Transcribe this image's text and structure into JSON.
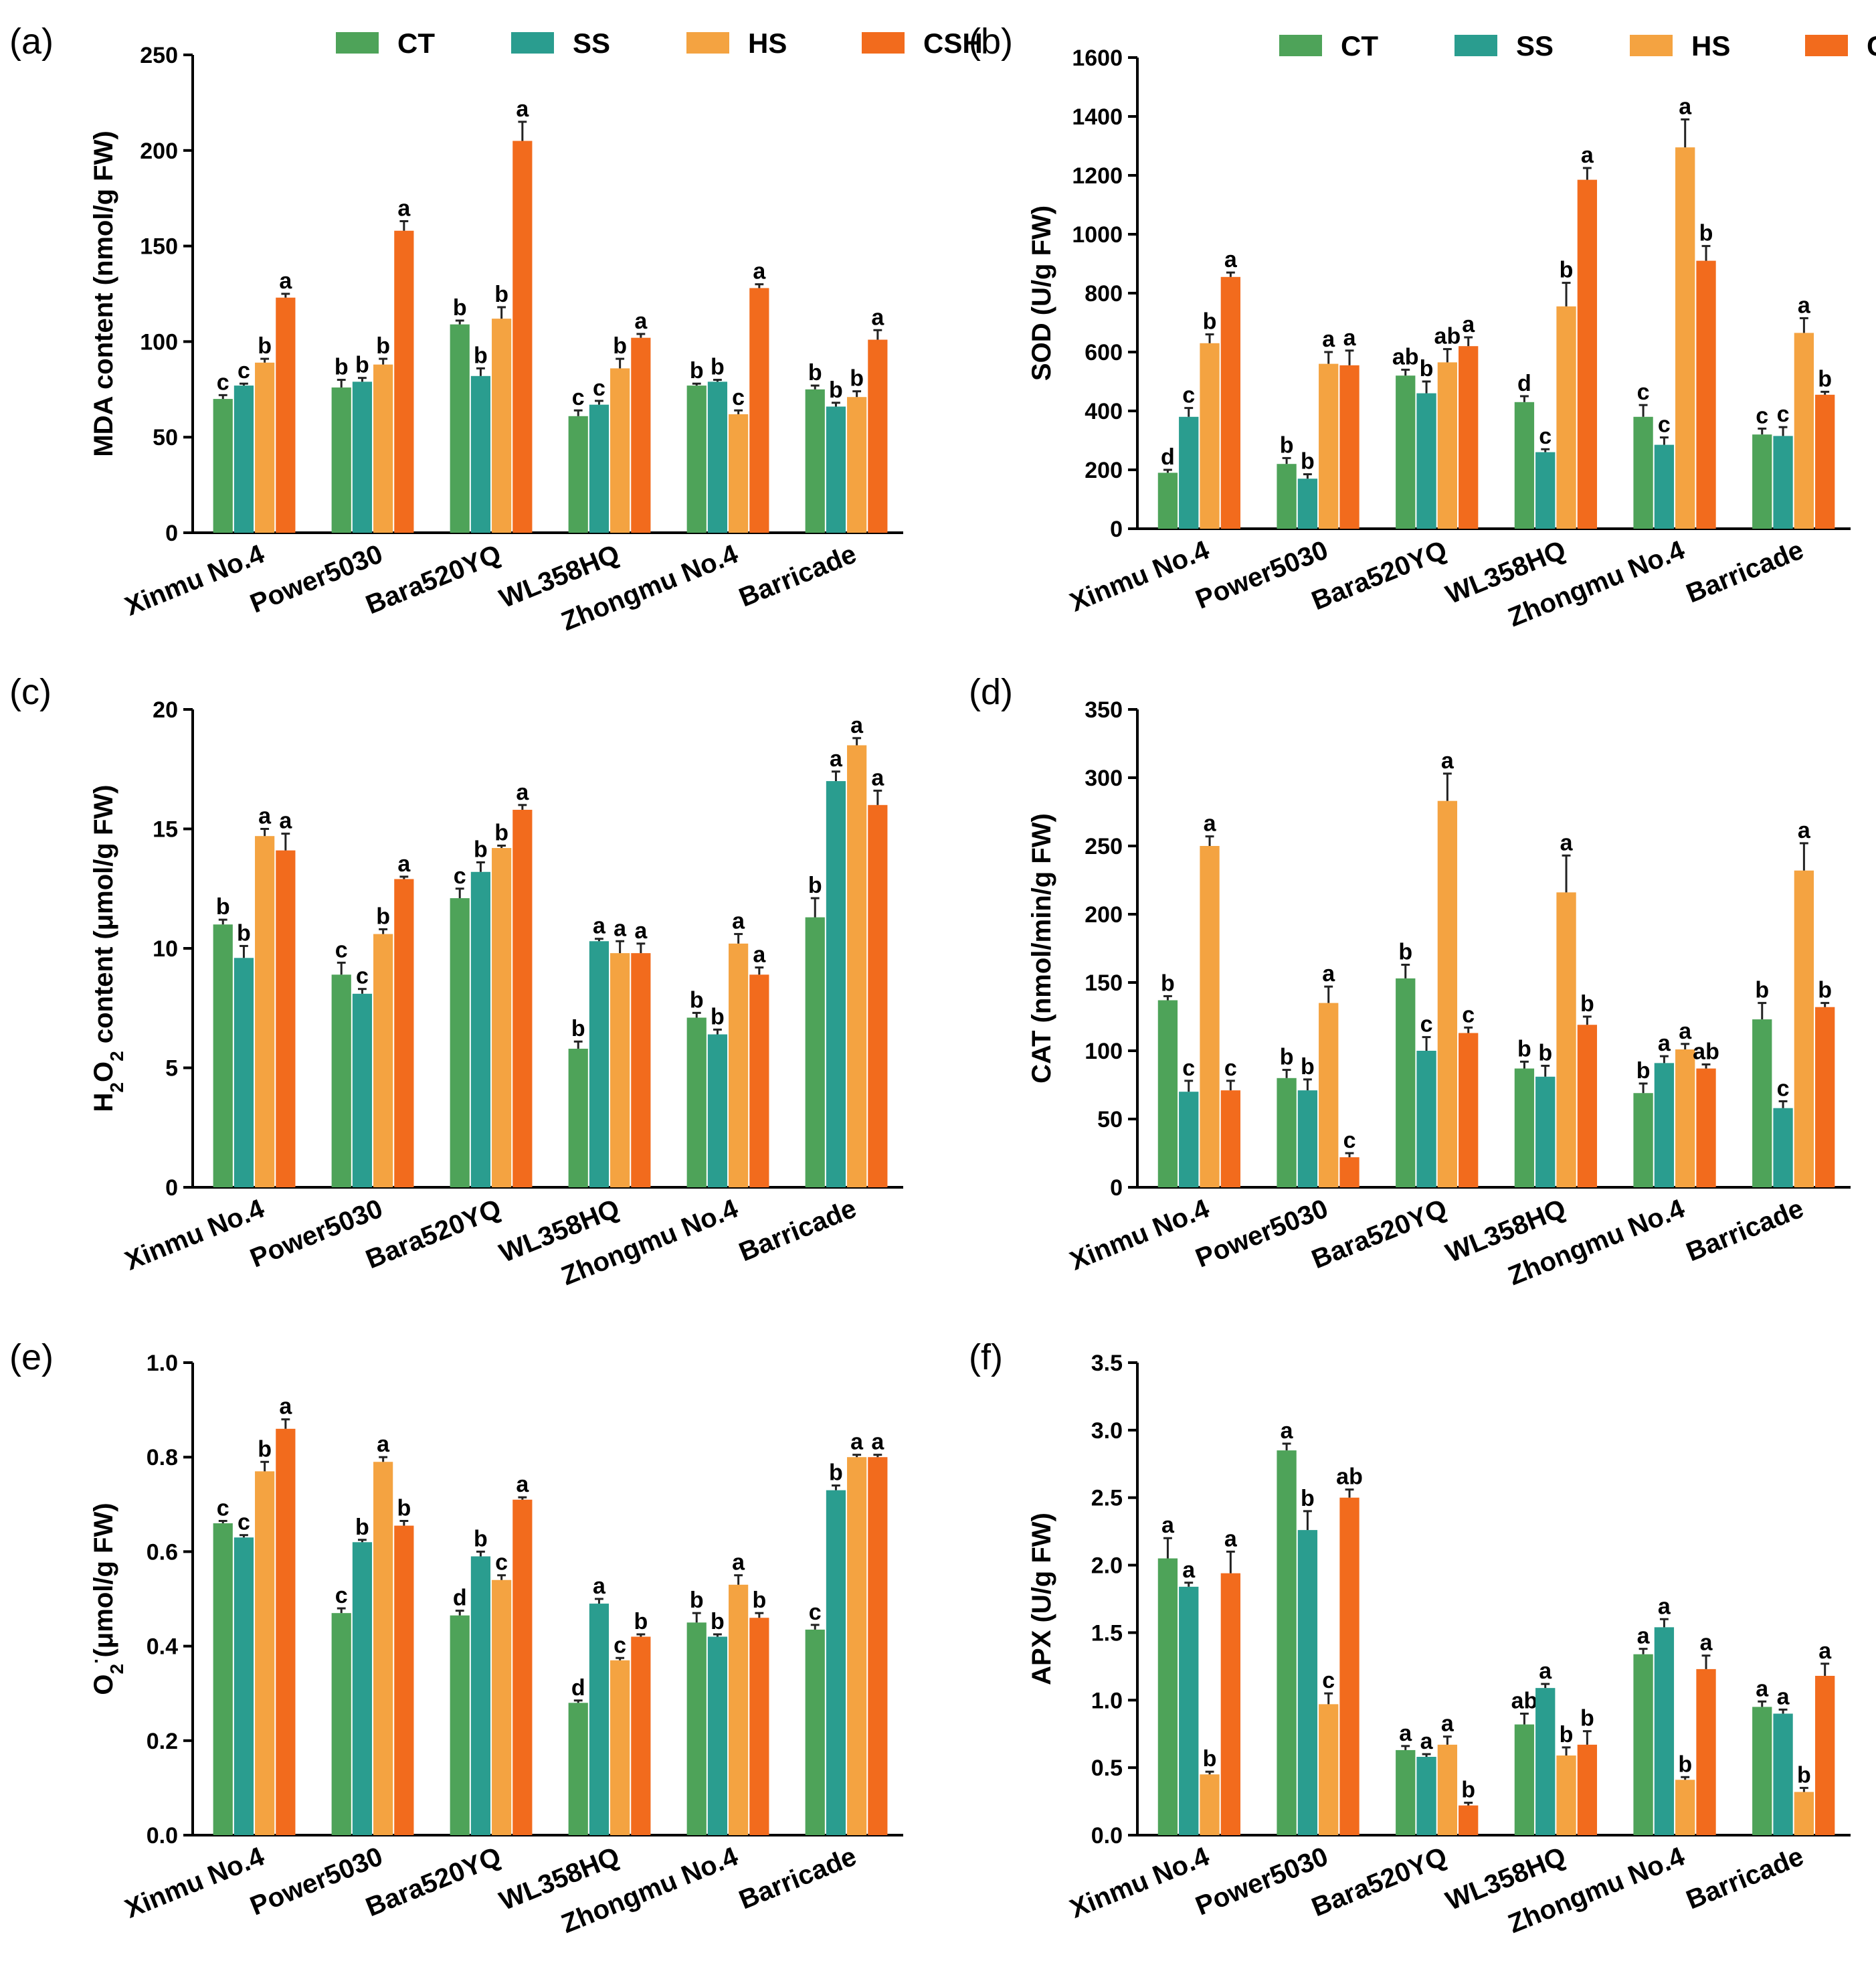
{
  "legend": [
    {
      "name": "CT",
      "color": "#4ea359"
    },
    {
      "name": "SS",
      "color": "#2a9d8f"
    },
    {
      "name": "HS",
      "color": "#f4a341"
    },
    {
      "name": "CSH",
      "color": "#f26b1d"
    }
  ],
  "chart_data": [
    {
      "panel": "(a)",
      "type": "bar",
      "legend": true,
      "ylabel": "MDA content (nmol/g  FW)",
      "ylim": [
        0,
        250
      ],
      "yticks": [
        "0",
        "50",
        "100",
        "150",
        "200",
        "250"
      ],
      "categories": [
        "Xinmu No.4",
        "Power5030",
        "Bara520YQ",
        "WL358HQ",
        "Zhongmu No.4",
        "Barricade"
      ],
      "series": [
        {
          "name": "CT",
          "values": [
            70,
            76,
            109,
            61,
            77,
            75
          ],
          "errors": [
            2,
            4,
            2,
            3,
            1,
            2
          ],
          "labels": [
            "c",
            "b",
            "b",
            "c",
            "b",
            "b"
          ]
        },
        {
          "name": "SS",
          "values": [
            77,
            79,
            82,
            67,
            79,
            66
          ],
          "errors": [
            1,
            2,
            4,
            2,
            1,
            2
          ],
          "labels": [
            "c",
            "b",
            "b",
            "c",
            "b",
            "b"
          ]
        },
        {
          "name": "HS",
          "values": [
            89,
            88,
            112,
            86,
            62,
            71
          ],
          "errors": [
            2,
            3,
            6,
            5,
            2,
            3
          ],
          "labels": [
            "b",
            "b",
            "b",
            "b",
            "c",
            "b"
          ]
        },
        {
          "name": "CSH",
          "values": [
            123,
            158,
            205,
            102,
            128,
            101
          ],
          "errors": [
            2,
            5,
            10,
            2,
            2,
            5
          ],
          "labels": [
            "a",
            "a",
            "a",
            "a",
            "a",
            "a"
          ]
        }
      ]
    },
    {
      "panel": "(b)",
      "type": "bar",
      "legend": true,
      "ylabel": "SOD (U/g FW)",
      "ylim": [
        0,
        1600
      ],
      "yticks": [
        "0",
        "200",
        "400",
        "600",
        "800",
        "1000",
        "1200",
        "1400",
        "1600"
      ],
      "categories": [
        "Xinmu No.4",
        "Power5030",
        "Bara520YQ",
        "WL358HQ",
        "Zhongmu No.4",
        "Barricade"
      ],
      "series": [
        {
          "name": "CT",
          "values": [
            190,
            220,
            520,
            430,
            380,
            320
          ],
          "errors": [
            10,
            20,
            20,
            20,
            40,
            20
          ],
          "labels": [
            "d",
            "b",
            "ab",
            "d",
            "c",
            "c"
          ]
        },
        {
          "name": "SS",
          "values": [
            380,
            170,
            460,
            260,
            285,
            315
          ],
          "errors": [
            30,
            15,
            40,
            10,
            25,
            30
          ],
          "labels": [
            "c",
            "b",
            "b",
            "c",
            "c",
            "c"
          ]
        },
        {
          "name": "HS",
          "values": [
            630,
            560,
            565,
            755,
            1295,
            665
          ],
          "errors": [
            30,
            40,
            45,
            80,
            95,
            50
          ],
          "labels": [
            "b",
            "a",
            "ab",
            "b",
            "a",
            "a"
          ]
        },
        {
          "name": "CSH",
          "values": [
            855,
            555,
            620,
            1185,
            910,
            455
          ],
          "errors": [
            15,
            50,
            30,
            40,
            50,
            10
          ],
          "labels": [
            "a",
            "a",
            "a",
            "a",
            "b",
            "b"
          ]
        }
      ]
    },
    {
      "panel": "(c)",
      "type": "bar",
      "legend": false,
      "ylabel": "H2O2 content (μmol/g FW)",
      "ylim": [
        0,
        20
      ],
      "yticks": [
        "0",
        "5",
        "10",
        "15",
        "20"
      ],
      "categories": [
        "Xinmu No.4",
        "Power5030",
        "Bara520YQ",
        "WL358HQ",
        "Zhongmu No.4",
        "Barricade"
      ],
      "series": [
        {
          "name": "CT",
          "values": [
            11.0,
            8.9,
            12.1,
            5.8,
            7.1,
            11.3
          ],
          "errors": [
            0.2,
            0.5,
            0.4,
            0.3,
            0.2,
            0.8
          ],
          "labels": [
            "b",
            "c",
            "c",
            "b",
            "b",
            "b"
          ]
        },
        {
          "name": "SS",
          "values": [
            9.6,
            8.1,
            13.2,
            10.3,
            6.4,
            17.0
          ],
          "errors": [
            0.5,
            0.2,
            0.4,
            0.1,
            0.2,
            0.4
          ],
          "labels": [
            "b",
            "c",
            "b",
            "a",
            "b",
            "a"
          ]
        },
        {
          "name": "HS",
          "values": [
            14.7,
            10.6,
            14.2,
            9.8,
            10.2,
            18.5
          ],
          "errors": [
            0.3,
            0.2,
            0.1,
            0.5,
            0.4,
            0.3
          ],
          "labels": [
            "a",
            "b",
            "b",
            "a",
            "a",
            "a"
          ]
        },
        {
          "name": "CSH",
          "values": [
            14.1,
            12.9,
            15.8,
            9.8,
            8.9,
            16.0
          ],
          "errors": [
            0.7,
            0.1,
            0.2,
            0.4,
            0.3,
            0.6
          ],
          "labels": [
            "a",
            "a",
            "a",
            "a",
            "a",
            "a"
          ]
        }
      ]
    },
    {
      "panel": "(d)",
      "type": "bar",
      "legend": false,
      "ylabel": "CAT (nmol/min/g FW)",
      "ylim": [
        0,
        350
      ],
      "yticks": [
        "0",
        "50",
        "100",
        "150",
        "200",
        "250",
        "300",
        "350"
      ],
      "categories": [
        "Xinmu No.4",
        "Power5030",
        "Bara520YQ",
        "WL358HQ",
        "Zhongmu No.4",
        "Barricade"
      ],
      "series": [
        {
          "name": "CT",
          "values": [
            137,
            80,
            153,
            87,
            69,
            123
          ],
          "errors": [
            3,
            6,
            10,
            5,
            7,
            12
          ],
          "labels": [
            "b",
            "b",
            "b",
            "b",
            "b",
            "b"
          ]
        },
        {
          "name": "SS",
          "values": [
            70,
            71,
            100,
            81,
            91,
            58
          ],
          "errors": [
            8,
            8,
            10,
            8,
            5,
            5
          ],
          "labels": [
            "c",
            "b",
            "c",
            "b",
            "a",
            "c"
          ]
        },
        {
          "name": "HS",
          "values": [
            250,
            135,
            283,
            216,
            101,
            232
          ],
          "errors": [
            7,
            12,
            20,
            27,
            4,
            20
          ],
          "labels": [
            "a",
            "a",
            "a",
            "a",
            "a",
            "a"
          ]
        },
        {
          "name": "CSH",
          "values": [
            71,
            22,
            113,
            119,
            87,
            132
          ],
          "errors": [
            7,
            3,
            4,
            6,
            3,
            3
          ],
          "labels": [
            "c",
            "c",
            "c",
            "b",
            "ab",
            "b"
          ]
        }
      ]
    },
    {
      "panel": "(e)",
      "type": "bar",
      "legend": false,
      "ylabel": "O2-(μmol/g FW)",
      "ylim": [
        0,
        1.0
      ],
      "yticks": [
        "0.0",
        "0.2",
        "0.4",
        "0.6",
        "0.8",
        "1.0"
      ],
      "categories": [
        "Xinmu No.4",
        "Power5030",
        "Bara520YQ",
        "WL358HQ",
        "Zhongmu No.4",
        "Barricade"
      ],
      "series": [
        {
          "name": "CT",
          "values": [
            0.66,
            0.47,
            0.465,
            0.28,
            0.45,
            0.435
          ],
          "errors": [
            0.005,
            0.01,
            0.01,
            0.005,
            0.02,
            0.01
          ],
          "labels": [
            "c",
            "c",
            "d",
            "d",
            "b",
            "c"
          ]
        },
        {
          "name": "SS",
          "values": [
            0.63,
            0.62,
            0.59,
            0.49,
            0.42,
            0.73
          ],
          "errors": [
            0.005,
            0.005,
            0.01,
            0.01,
            0.005,
            0.01
          ],
          "labels": [
            "c",
            "b",
            "b",
            "a",
            "b",
            "b"
          ]
        },
        {
          "name": "HS",
          "values": [
            0.77,
            0.79,
            0.54,
            0.37,
            0.53,
            0.8
          ],
          "errors": [
            0.02,
            0.01,
            0.01,
            0.005,
            0.02,
            0.005
          ],
          "labels": [
            "b",
            "a",
            "c",
            "c",
            "a",
            "a"
          ]
        },
        {
          "name": "CSH",
          "values": [
            0.86,
            0.655,
            0.71,
            0.42,
            0.46,
            0.8
          ],
          "errors": [
            0.02,
            0.01,
            0.005,
            0.005,
            0.01,
            0.005
          ],
          "labels": [
            "a",
            "b",
            "a",
            "b",
            "b",
            "a"
          ]
        }
      ]
    },
    {
      "panel": "(f)",
      "type": "bar",
      "legend": false,
      "ylabel": "APX (U/g FW)",
      "ylim": [
        0,
        3.5
      ],
      "yticks": [
        "0.0",
        "0.5",
        "1.0",
        "1.5",
        "2.0",
        "2.5",
        "3.0",
        "3.5"
      ],
      "categories": [
        "Xinmu No.4",
        "Power5030",
        "Bara520YQ",
        "WL358HQ",
        "Zhongmu No.4",
        "Barricade"
      ],
      "series": [
        {
          "name": "CT",
          "values": [
            2.05,
            2.85,
            0.63,
            0.82,
            1.34,
            0.95
          ],
          "errors": [
            0.15,
            0.05,
            0.03,
            0.08,
            0.04,
            0.04
          ],
          "labels": [
            "a",
            "a",
            "a",
            "ab",
            "a",
            "a"
          ]
        },
        {
          "name": "SS",
          "values": [
            1.84,
            2.26,
            0.58,
            1.09,
            1.54,
            0.9
          ],
          "errors": [
            0.03,
            0.14,
            0.02,
            0.03,
            0.06,
            0.03
          ],
          "labels": [
            "a",
            "b",
            "a",
            "a",
            "a",
            "a"
          ]
        },
        {
          "name": "HS",
          "values": [
            0.45,
            0.97,
            0.67,
            0.59,
            0.41,
            0.32
          ],
          "errors": [
            0.02,
            0.08,
            0.06,
            0.06,
            0.02,
            0.03
          ],
          "labels": [
            "b",
            "c",
            "a",
            "b",
            "b",
            "b"
          ]
        },
        {
          "name": "CSH",
          "values": [
            1.94,
            2.5,
            0.22,
            0.67,
            1.23,
            1.18
          ],
          "errors": [
            0.16,
            0.06,
            0.02,
            0.1,
            0.1,
            0.09
          ],
          "labels": [
            "a",
            "ab",
            "b",
            "b",
            "a",
            "a"
          ]
        }
      ]
    }
  ]
}
